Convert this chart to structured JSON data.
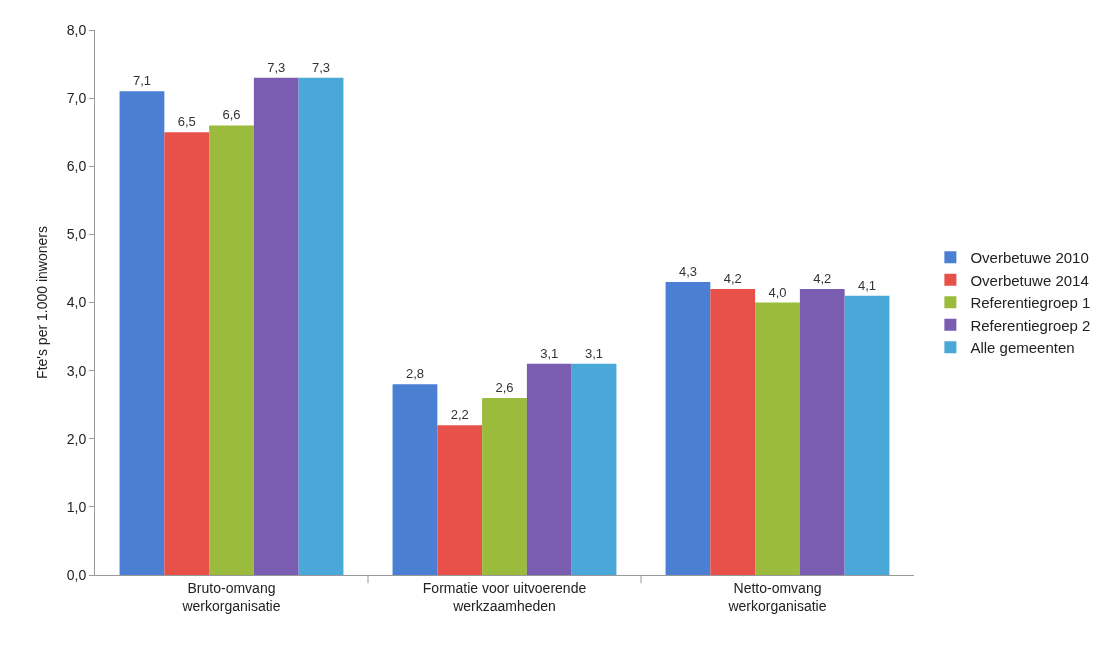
{
  "chart_data": {
    "type": "bar",
    "ylabel": "Fte's per 1.000 inwoners",
    "categories": [
      "Bruto-omvang\nwerkorganisatie",
      "Formatie voor uitvoerende\nwerkzaamheden",
      "Netto-omvang\nwerkorganisatie"
    ],
    "series": [
      {
        "name": "Overbetuwe 2010",
        "color": "#4a7fd4",
        "values": [
          7.1,
          2.8,
          4.3
        ],
        "value_labels": [
          "7,1",
          "2,8",
          "4,3"
        ]
      },
      {
        "name": "Overbetuwe 2014",
        "color": "#e8504a",
        "values": [
          6.5,
          2.2,
          4.2
        ],
        "value_labels": [
          "6,5",
          "2,2",
          "4,2"
        ]
      },
      {
        "name": "Referentiegroep 1",
        "color": "#9bbb3c",
        "values": [
          6.6,
          2.6,
          4.0
        ],
        "value_labels": [
          "6,6",
          "2,6",
          "4,0"
        ]
      },
      {
        "name": "Referentiegroep 2",
        "color": "#7a5cb0",
        "values": [
          7.3,
          3.1,
          4.2
        ],
        "value_labels": [
          "7,3",
          "3,1",
          "4,2"
        ]
      },
      {
        "name": "Alle gemeenten",
        "color": "#4aa8d8",
        "values": [
          7.3,
          3.1,
          4.1
        ],
        "value_labels": [
          "7,3",
          "3,1",
          "4,1"
        ]
      }
    ],
    "ylim": [
      0,
      8
    ],
    "yticks": [
      {
        "value": 0,
        "label": "0,0"
      },
      {
        "value": 1,
        "label": "1,0"
      },
      {
        "value": 2,
        "label": "2,0"
      },
      {
        "value": 3,
        "label": "3,0"
      },
      {
        "value": 4,
        "label": "4,0"
      },
      {
        "value": 5,
        "label": "5,0"
      },
      {
        "value": 6,
        "label": "6,0"
      },
      {
        "value": 7,
        "label": "7,0"
      },
      {
        "value": 8,
        "label": "8,0"
      }
    ],
    "grid": false,
    "legend": "right"
  }
}
